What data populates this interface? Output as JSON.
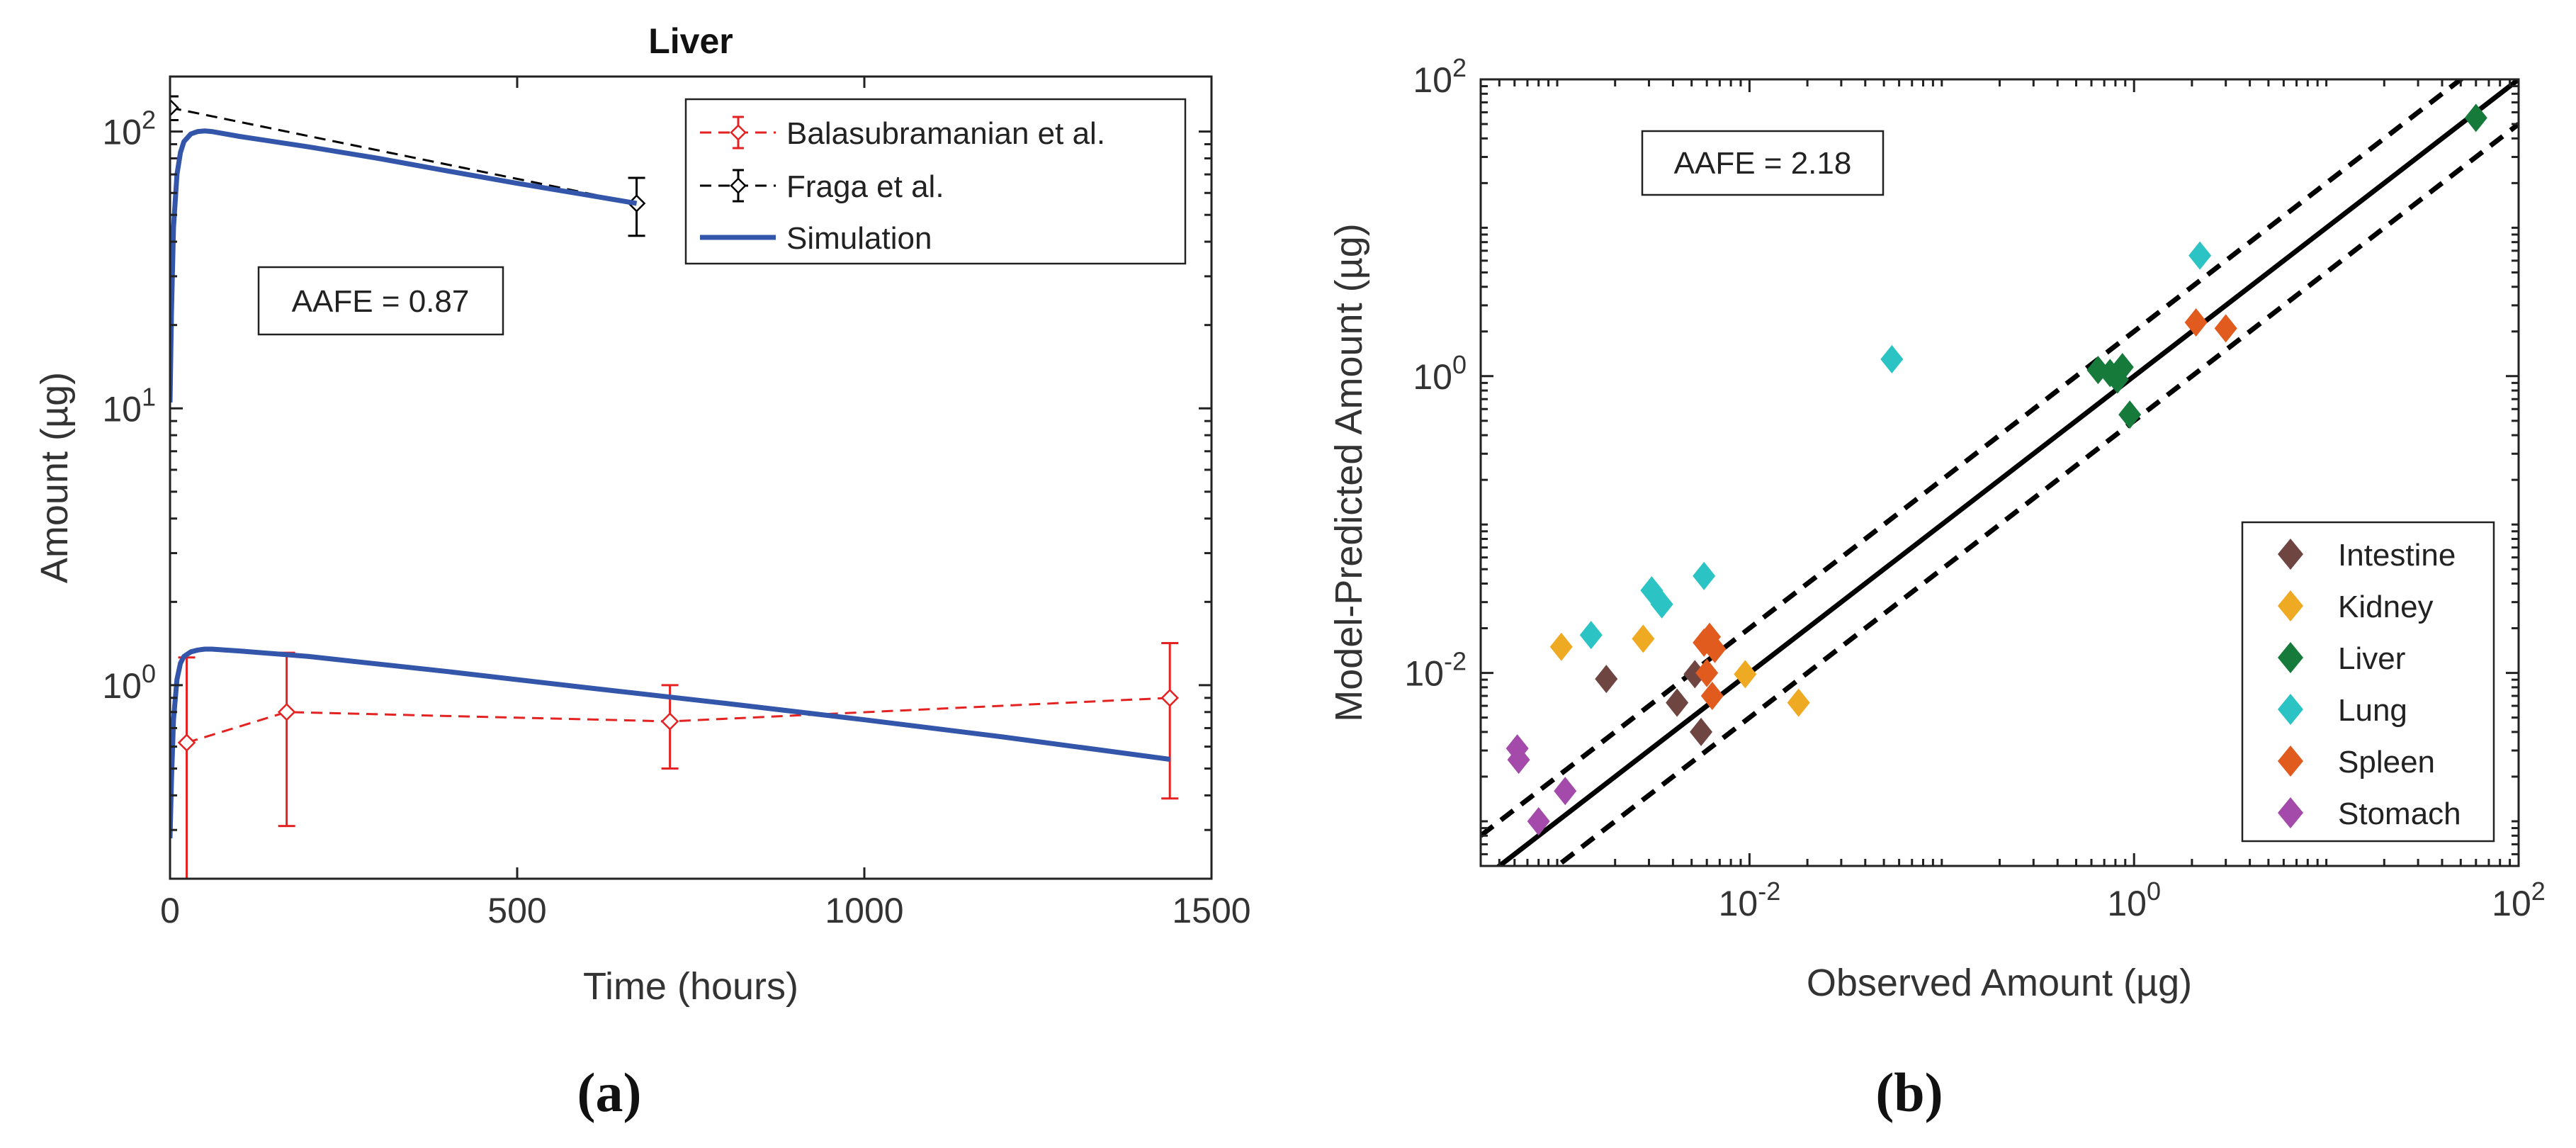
{
  "colors": {
    "simulation": "#3355aa",
    "balasubramanian": "#e52222",
    "fraga": "#000000",
    "intestine": "#6e4541",
    "kidney": "#eeaa22",
    "liver": "#157a3a",
    "lung": "#2bc3c3",
    "spleen": "#e15a1e",
    "stomach": "#a34aaa"
  },
  "chart_data": [
    {
      "type": "line",
      "panel_label": "(a)",
      "title": "Liver",
      "xlabel": "Time (hours)",
      "ylabel": "Amount (µg)",
      "xscale": "linear",
      "yscale": "log",
      "xlim": [
        0,
        1500
      ],
      "ylim": [
        0.2,
        158
      ],
      "xticks": [
        0,
        500,
        1000,
        1500
      ],
      "yticks": [
        1,
        10,
        100
      ],
      "annotation": "AAFE = 0.87",
      "legend": {
        "position": "top-right",
        "entries": [
          "Balasubramanian et al.",
          "Fraga et al.",
          "Simulation"
        ]
      },
      "series": [
        {
          "name": "Balasubramanian et al.",
          "style": "red dashed with diamond markers and error bars",
          "x": [
            24,
            168,
            720,
            1440
          ],
          "y": [
            0.62,
            0.8,
            0.74,
            0.9
          ],
          "y_low": [
            0.2,
            0.31,
            0.5,
            0.39
          ],
          "y_high": [
            1.26,
            1.31,
            1.0,
            1.42
          ]
        },
        {
          "name": "Fraga et al.",
          "style": "black dashed with diamond markers and error bars",
          "x": [
            0,
            672
          ],
          "y": [
            122,
            55
          ],
          "y_low": [
            110,
            42
          ],
          "y_high": [
            134,
            68
          ]
        },
        {
          "name": "Simulation",
          "style": "solid blue",
          "curves": [
            {
              "x": [
                0,
                2,
                5,
                10,
                15,
                20,
                30,
                40,
                50,
                60,
                100,
                200,
                300,
                400,
                500,
                600,
                672
              ],
              "y": [
                10.5,
                22,
                45,
                70,
                84,
                92,
                98,
                100,
                100.5,
                100,
                96,
                88,
                80,
                72,
                65,
                59,
                55
              ]
            },
            {
              "x": [
                0,
                2,
                5,
                10,
                15,
                20,
                30,
                40,
                50,
                60,
                100,
                200,
                400,
                600,
                800,
                1000,
                1200,
                1440
              ],
              "y": [
                0.28,
                0.45,
                0.75,
                1.05,
                1.2,
                1.27,
                1.32,
                1.34,
                1.35,
                1.35,
                1.33,
                1.27,
                1.12,
                0.98,
                0.86,
                0.75,
                0.65,
                0.54
              ]
            }
          ]
        }
      ]
    },
    {
      "type": "scatter",
      "panel_label": "(b)",
      "xlabel": "Observed Amount (µg)",
      "ylabel": "Model-Predicted Amount (µg)",
      "xscale": "log",
      "yscale": "log",
      "xlim": [
        0.0004,
        100
      ],
      "ylim": [
        0.0005,
        100
      ],
      "xticks": [
        0.01,
        1,
        100
      ],
      "yticks": [
        0.01,
        1,
        100
      ],
      "annotation": "AAFE = 2.18",
      "reference_lines": [
        {
          "name": "identity",
          "style": "solid black",
          "factor": 1
        },
        {
          "name": "2-fold above",
          "style": "dashed black",
          "factor": 2
        },
        {
          "name": "2-fold below",
          "style": "dashed black",
          "factor": 0.5
        }
      ],
      "legend": {
        "position": "bottom-right",
        "entries": [
          "Intestine",
          "Kidney",
          "Liver",
          "Lung",
          "Spleen",
          "Stomach"
        ]
      },
      "series": [
        {
          "name": "Intestine",
          "x": [
            0.0018,
            0.0042,
            0.0052,
            0.0056
          ],
          "y": [
            0.0091,
            0.0063,
            0.0098,
            0.004
          ]
        },
        {
          "name": "Kidney",
          "x": [
            0.00105,
            0.0028,
            0.0095,
            0.018
          ],
          "y": [
            0.015,
            0.017,
            0.0098,
            0.0063
          ]
        },
        {
          "name": "Liver",
          "x": [
            0.65,
            0.75,
            0.82,
            0.87,
            0.95,
            60
          ],
          "y": [
            1.1,
            1.05,
            0.95,
            1.15,
            0.55,
            55
          ]
        },
        {
          "name": "Lung",
          "x": [
            0.0015,
            0.0031,
            0.0035,
            0.0058,
            0.055,
            2.2
          ],
          "y": [
            0.018,
            0.036,
            0.029,
            0.045,
            1.3,
            6.5
          ]
        },
        {
          "name": "Spleen",
          "x": [
            0.0058,
            0.0062,
            0.0066,
            0.006,
            0.0064,
            2.1,
            3.0
          ],
          "y": [
            0.016,
            0.0175,
            0.0145,
            0.01,
            0.007,
            2.3,
            2.1
          ]
        },
        {
          "name": "Stomach",
          "x": [
            0.00062,
            0.00063,
            0.0008,
            0.0011
          ],
          "y": [
            0.0031,
            0.0026,
            0.001,
            0.0016
          ]
        }
      ]
    }
  ]
}
